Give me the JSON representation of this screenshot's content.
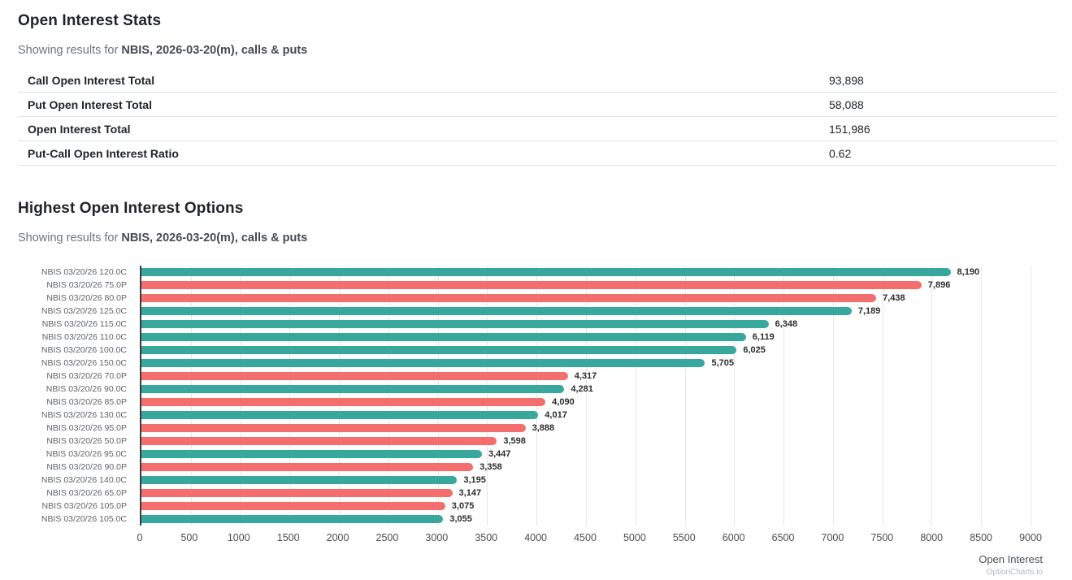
{
  "stats_section": {
    "title": "Open Interest Stats",
    "subtitle_prefix": "Showing results for ",
    "subtitle_bold": "NBIS, 2026-03-20(m), calls & puts",
    "rows": [
      {
        "label": "Call Open Interest Total",
        "value": "93,898"
      },
      {
        "label": "Put Open Interest Total",
        "value": "58,088"
      },
      {
        "label": "Open Interest Total",
        "value": "151,986"
      },
      {
        "label": "Put-Call Open Interest Ratio",
        "value": "0.62"
      }
    ]
  },
  "chart_section": {
    "title": "Highest Open Interest Options",
    "subtitle_prefix": "Showing results for ",
    "subtitle_bold": "NBIS, 2026-03-20(m), calls & puts"
  },
  "chart_data": {
    "type": "bar",
    "orientation": "horizontal",
    "title": "Highest Open Interest Options",
    "xlabel": "Open Interest",
    "ylabel": "",
    "xlim": [
      0,
      9000
    ],
    "x_ticks": [
      0,
      500,
      1000,
      1500,
      2000,
      2500,
      3000,
      3500,
      4000,
      4500,
      5000,
      5500,
      6000,
      6500,
      7000,
      7500,
      8000,
      8500,
      9000
    ],
    "grid": true,
    "legend": "none",
    "colors": {
      "call": "#38a89d",
      "put": "#f56e6e"
    },
    "credit": "OptionCharts.io",
    "bars": [
      {
        "label": "NBIS 03/20/26 120.0C",
        "value": 8190,
        "display": "8,190",
        "type": "call"
      },
      {
        "label": "NBIS 03/20/26 75.0P",
        "value": 7896,
        "display": "7,896",
        "type": "put"
      },
      {
        "label": "NBIS 03/20/26 80.0P",
        "value": 7438,
        "display": "7,438",
        "type": "put"
      },
      {
        "label": "NBIS 03/20/26 125.0C",
        "value": 7189,
        "display": "7,189",
        "type": "call"
      },
      {
        "label": "NBIS 03/20/26 115.0C",
        "value": 6348,
        "display": "6,348",
        "type": "call"
      },
      {
        "label": "NBIS 03/20/26 110.0C",
        "value": 6119,
        "display": "6,119",
        "type": "call"
      },
      {
        "label": "NBIS 03/20/26 100.0C",
        "value": 6025,
        "display": "6,025",
        "type": "call"
      },
      {
        "label": "NBIS 03/20/26 150.0C",
        "value": 5705,
        "display": "5,705",
        "type": "call"
      },
      {
        "label": "NBIS 03/20/26 70.0P",
        "value": 4317,
        "display": "4,317",
        "type": "put"
      },
      {
        "label": "NBIS 03/20/26 90.0C",
        "value": 4281,
        "display": "4,281",
        "type": "call"
      },
      {
        "label": "NBIS 03/20/26 85.0P",
        "value": 4090,
        "display": "4,090",
        "type": "put"
      },
      {
        "label": "NBIS 03/20/26 130.0C",
        "value": 4017,
        "display": "4,017",
        "type": "call"
      },
      {
        "label": "NBIS 03/20/26 95.0P",
        "value": 3888,
        "display": "3,888",
        "type": "put"
      },
      {
        "label": "NBIS 03/20/26 50.0P",
        "value": 3598,
        "display": "3,598",
        "type": "put"
      },
      {
        "label": "NBIS 03/20/26 95.0C",
        "value": 3447,
        "display": "3,447",
        "type": "call"
      },
      {
        "label": "NBIS 03/20/26 90.0P",
        "value": 3358,
        "display": "3,358",
        "type": "put"
      },
      {
        "label": "NBIS 03/20/26 140.0C",
        "value": 3195,
        "display": "3,195",
        "type": "call"
      },
      {
        "label": "NBIS 03/20/26 65.0P",
        "value": 3147,
        "display": "3,147",
        "type": "put"
      },
      {
        "label": "NBIS 03/20/26 105.0P",
        "value": 3075,
        "display": "3,075",
        "type": "put"
      },
      {
        "label": "NBIS 03/20/26 105.0C",
        "value": 3055,
        "display": "3,055",
        "type": "call"
      }
    ]
  }
}
